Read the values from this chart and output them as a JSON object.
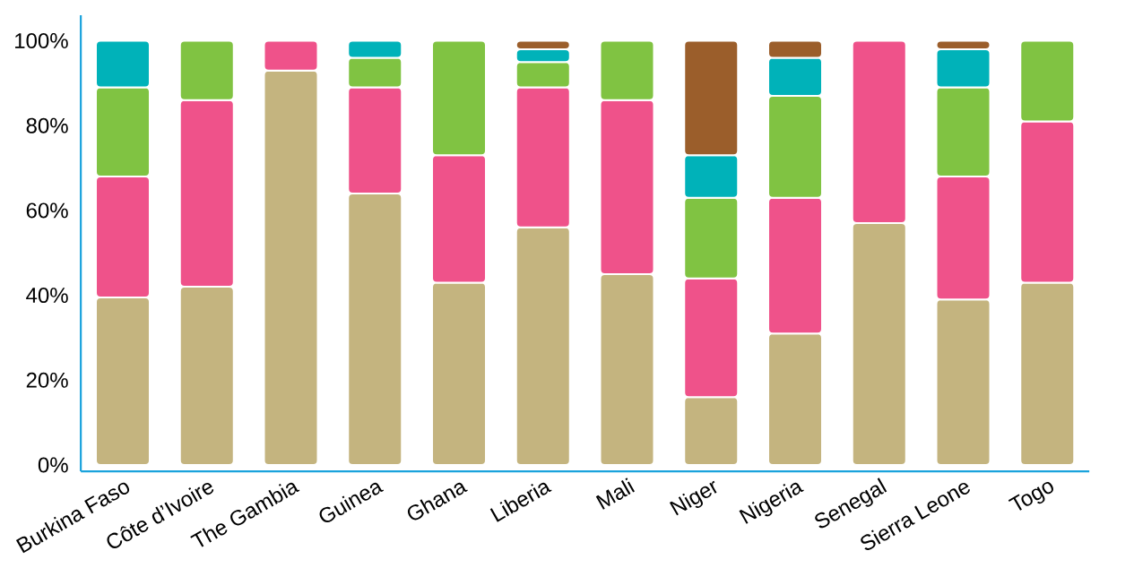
{
  "chart_data": {
    "type": "bar",
    "stacked": true,
    "categories": [
      "Burkina Faso",
      "Côte d’Ivoire",
      "The Gambia",
      "Guinea",
      "Ghana",
      "Liberia",
      "Mali",
      "Niger",
      "Nigeria",
      "Senegal",
      "Sierra Leone",
      "Togo"
    ],
    "series": [
      {
        "color": "#c4b47f",
        "values": [
          39.5,
          42,
          93,
          64,
          43,
          56,
          45,
          16,
          31,
          57,
          39,
          43
        ]
      },
      {
        "color": "#ef528a",
        "values": [
          28.5,
          44,
          7,
          25,
          30,
          33,
          41,
          28,
          32,
          43,
          29,
          38
        ]
      },
      {
        "color": "#80c342",
        "values": [
          21,
          14,
          null,
          7,
          27,
          6,
          14,
          19,
          24,
          null,
          21,
          19
        ]
      },
      {
        "color": "#00b2b9",
        "values": [
          11,
          null,
          null,
          4,
          null,
          3,
          null,
          10,
          9,
          null,
          9,
          null
        ]
      },
      {
        "color": "#9b5e2b",
        "values": [
          null,
          null,
          null,
          null,
          null,
          2,
          null,
          27,
          4,
          null,
          2,
          null
        ]
      }
    ],
    "ylim": [
      -1.5,
      106
    ],
    "yticks": [
      {
        "value": 0,
        "label": "0%"
      },
      {
        "value": 20,
        "label": "20%"
      },
      {
        "value": 40,
        "label": "40%"
      },
      {
        "value": 60,
        "label": "60%"
      },
      {
        "value": 80,
        "label": "80%"
      },
      {
        "value": 100,
        "label": "100%"
      }
    ],
    "grid": false
  }
}
